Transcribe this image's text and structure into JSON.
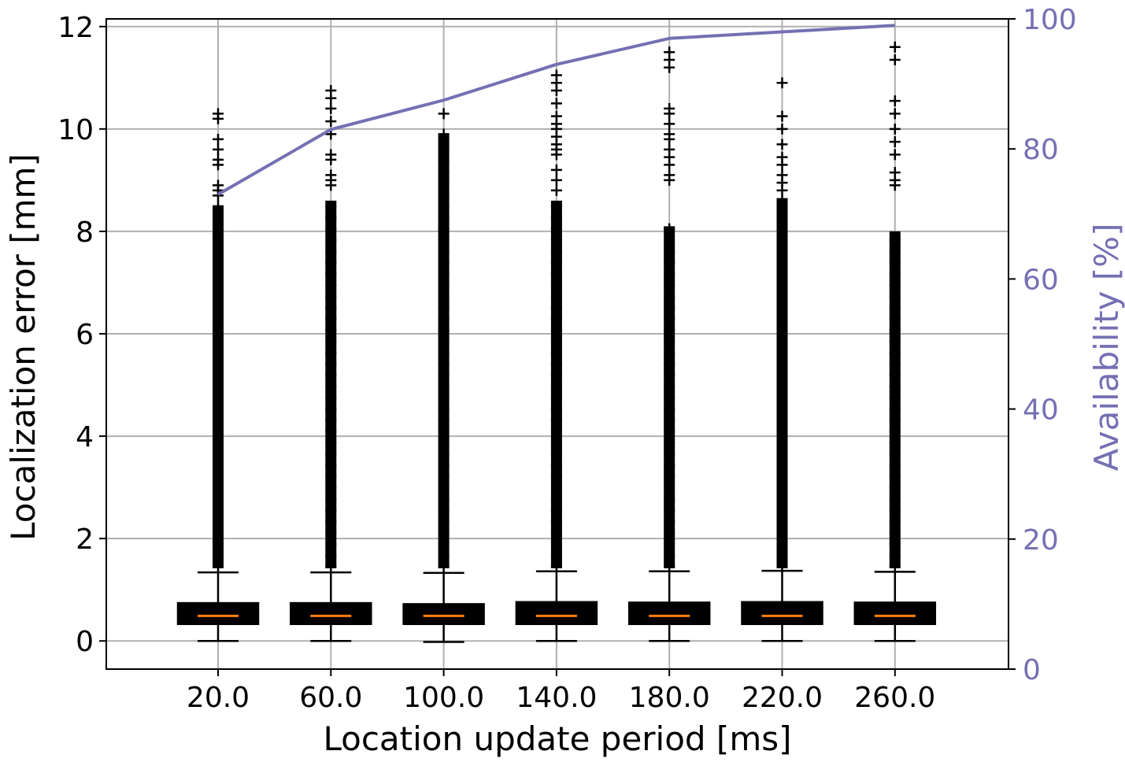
{
  "chart_data": {
    "type": "box",
    "xlabel": "Location update period [ms]",
    "ylabel_left": "Localization error [mm]",
    "ylabel_right": "Availability [%]",
    "ylim_left": [
      -0.55,
      12.15
    ],
    "ylim_right": [
      0,
      100
    ],
    "yticks_left": [
      0,
      2,
      4,
      6,
      8,
      10,
      12
    ],
    "yticks_right": [
      0,
      20,
      40,
      60,
      80,
      100
    ],
    "grid": true,
    "categories": [
      "20.0",
      "60.0",
      "100.0",
      "140.0",
      "180.0",
      "220.0",
      "260.0"
    ],
    "boxes": [
      {
        "min": 0.0,
        "q1": 0.33,
        "median": 0.49,
        "q3": 0.74,
        "max": 1.34,
        "outliers": [
          10.3,
          10.2,
          9.8,
          9.6,
          9.4,
          9.3,
          8.9,
          8.8,
          8.7
        ]
      },
      {
        "min": 0.0,
        "q1": 0.33,
        "median": 0.49,
        "q3": 0.74,
        "max": 1.34,
        "outliers": [
          10.75,
          10.6,
          10.4,
          10.15,
          9.9,
          9.5,
          9.4,
          9.1,
          9.0,
          8.9
        ]
      },
      {
        "min": -0.02,
        "q1": 0.33,
        "median": 0.49,
        "q3": 0.72,
        "max": 1.33,
        "outliers": [
          10.3,
          9.9
        ]
      },
      {
        "min": 0.0,
        "q1": 0.33,
        "median": 0.49,
        "q3": 0.76,
        "max": 1.36,
        "outliers": [
          11.05,
          10.9,
          10.75,
          10.5,
          10.25,
          10.1,
          10.0,
          9.85,
          9.7,
          9.6,
          9.5,
          9.2,
          9.0,
          8.8
        ]
      },
      {
        "min": 0.0,
        "q1": 0.33,
        "median": 0.49,
        "q3": 0.75,
        "max": 1.36,
        "outliers": [
          11.5,
          11.35,
          11.2,
          10.4,
          10.3,
          10.1,
          9.9,
          9.8,
          9.6,
          9.45,
          9.3,
          9.1,
          9.0
        ]
      },
      {
        "min": 0.0,
        "q1": 0.33,
        "median": 0.49,
        "q3": 0.76,
        "max": 1.37,
        "outliers": [
          10.9,
          10.25,
          10.0,
          9.7,
          9.45,
          9.3,
          9.1,
          8.95,
          8.8,
          8.6
        ]
      },
      {
        "min": 0.0,
        "q1": 0.33,
        "median": 0.49,
        "q3": 0.75,
        "max": 1.35,
        "outliers": [
          11.6,
          11.35,
          10.55,
          10.3,
          10.0,
          9.75,
          9.5,
          9.15,
          9.0,
          8.9
        ]
      }
    ],
    "outlier_dense_top": [
      8.5,
      8.6,
      9.9,
      8.6,
      8.1,
      8.65,
      8.0
    ],
    "availability": {
      "x": [
        "20.0",
        "60.0",
        "100.0",
        "140.0",
        "180.0",
        "220.0",
        "260.0"
      ],
      "values": [
        73.0,
        83.0,
        87.5,
        93.0,
        97.0,
        98.0,
        99.0
      ]
    },
    "colors": {
      "box": "#000000",
      "median": "#ff7f0e",
      "availability": "#7570b3",
      "grid": "#b0b0b0"
    }
  }
}
